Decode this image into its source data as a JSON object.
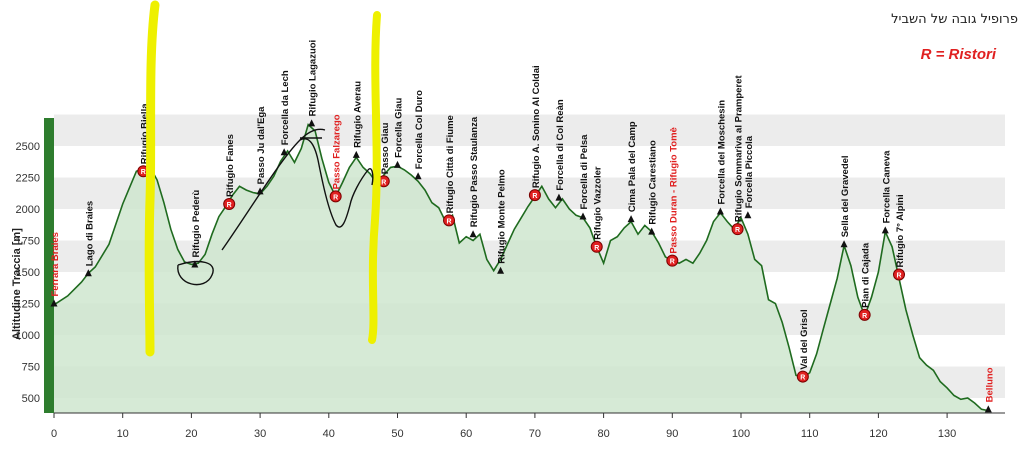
{
  "header": {
    "title": "פרופיל גובה של השביל",
    "legend": "R = Ristori"
  },
  "colors": {
    "line": "#1f6b1f",
    "fill": "#cfe6cf",
    "band": "#ececec",
    "ristoro": "#e02020",
    "highlighter": "#f2f200",
    "leftbar": "#2e7d2e",
    "red_label": "#e02020"
  },
  "chart_data": {
    "type": "area",
    "ylabel": "Altitudine Traccia [m]",
    "xlim": [
      0,
      138
    ],
    "ylim": [
      380,
      2740
    ],
    "x_ticks": [
      0,
      10,
      20,
      30,
      40,
      50,
      60,
      70,
      80,
      90,
      100,
      110,
      120,
      130
    ],
    "y_ticks": [
      500,
      750,
      1000,
      1250,
      1500,
      1750,
      2000,
      2250,
      2500
    ],
    "grid": "horizontal bands",
    "profile": [
      [
        0,
        1240
      ],
      [
        2,
        1310
      ],
      [
        4,
        1420
      ],
      [
        5,
        1490
      ],
      [
        6,
        1540
      ],
      [
        8,
        1720
      ],
      [
        10,
        2040
      ],
      [
        12,
        2300
      ],
      [
        13,
        2320
      ],
      [
        14,
        2330
      ],
      [
        15,
        2230
      ],
      [
        16,
        2050
      ],
      [
        17,
        1840
      ],
      [
        18,
        1680
      ],
      [
        19,
        1580
      ],
      [
        20,
        1560
      ],
      [
        21,
        1570
      ],
      [
        22,
        1640
      ],
      [
        23,
        1800
      ],
      [
        24,
        1940
      ],
      [
        25,
        2020
      ],
      [
        26,
        2110
      ],
      [
        27,
        2180
      ],
      [
        28,
        2150
      ],
      [
        29,
        2130
      ],
      [
        30,
        2120
      ],
      [
        31,
        2180
      ],
      [
        32,
        2260
      ],
      [
        33,
        2380
      ],
      [
        34,
        2460
      ],
      [
        35,
        2370
      ],
      [
        36,
        2480
      ],
      [
        37,
        2670
      ],
      [
        38,
        2620
      ],
      [
        39,
        2400
      ],
      [
        40,
        2210
      ],
      [
        41,
        2100
      ],
      [
        42,
        2210
      ],
      [
        43,
        2330
      ],
      [
        44,
        2410
      ],
      [
        45,
        2330
      ],
      [
        46,
        2280
      ],
      [
        47,
        2200
      ],
      [
        48,
        2270
      ],
      [
        49,
        2330
      ],
      [
        50,
        2340
      ],
      [
        51,
        2310
      ],
      [
        52,
        2270
      ],
      [
        53,
        2220
      ],
      [
        54,
        2150
      ],
      [
        55,
        2050
      ],
      [
        56,
        2010
      ],
      [
        57,
        1900
      ],
      [
        58,
        1950
      ],
      [
        59,
        1730
      ],
      [
        60,
        1780
      ],
      [
        61,
        1750
      ],
      [
        62,
        1800
      ],
      [
        63,
        1600
      ],
      [
        64,
        1510
      ],
      [
        65,
        1600
      ],
      [
        66,
        1720
      ],
      [
        67,
        1840
      ],
      [
        68,
        1930
      ],
      [
        69,
        2020
      ],
      [
        70,
        2100
      ],
      [
        71,
        2180
      ],
      [
        72,
        2080
      ],
      [
        73,
        2010
      ],
      [
        74,
        2080
      ],
      [
        75,
        2000
      ],
      [
        76,
        1950
      ],
      [
        77,
        1930
      ],
      [
        78,
        1850
      ],
      [
        79,
        1700
      ],
      [
        80,
        1570
      ],
      [
        81,
        1750
      ],
      [
        82,
        1780
      ],
      [
        83,
        1850
      ],
      [
        84,
        1900
      ],
      [
        85,
        1800
      ],
      [
        86,
        1870
      ],
      [
        87,
        1820
      ],
      [
        88,
        1730
      ],
      [
        89,
        1620
      ],
      [
        90,
        1590
      ],
      [
        91,
        1570
      ],
      [
        92,
        1600
      ],
      [
        93,
        1570
      ],
      [
        94,
        1650
      ],
      [
        95,
        1750
      ],
      [
        96,
        1900
      ],
      [
        97,
        1970
      ],
      [
        98,
        1900
      ],
      [
        99,
        1840
      ],
      [
        100,
        1930
      ],
      [
        101,
        1800
      ],
      [
        102,
        1600
      ],
      [
        103,
        1550
      ],
      [
        104,
        1280
      ],
      [
        105,
        1250
      ],
      [
        106,
        1100
      ],
      [
        107,
        900
      ],
      [
        108,
        680
      ],
      [
        109,
        660
      ],
      [
        110,
        700
      ],
      [
        111,
        850
      ],
      [
        112,
        1050
      ],
      [
        113,
        1250
      ],
      [
        114,
        1450
      ],
      [
        115,
        1710
      ],
      [
        116,
        1550
      ],
      [
        117,
        1300
      ],
      [
        118,
        1150
      ],
      [
        119,
        1300
      ],
      [
        120,
        1500
      ],
      [
        121,
        1820
      ],
      [
        122,
        1700
      ],
      [
        123,
        1450
      ],
      [
        124,
        1200
      ],
      [
        125,
        1000
      ],
      [
        126,
        820
      ],
      [
        127,
        760
      ],
      [
        128,
        720
      ],
      [
        129,
        630
      ],
      [
        130,
        580
      ],
      [
        131,
        520
      ],
      [
        132,
        490
      ],
      [
        133,
        500
      ],
      [
        134,
        460
      ],
      [
        135,
        410
      ],
      [
        136,
        400
      ]
    ],
    "waypoints": [
      {
        "x": 0,
        "y": 1250,
        "label": "Ferrara Braies",
        "color": "red",
        "marker": "tri"
      },
      {
        "x": 5,
        "y": 1490,
        "label": "Lago di Braies",
        "color": "black",
        "marker": "tri"
      },
      {
        "x": 13,
        "y": 2300,
        "label": "Rifugio Biella",
        "color": "black",
        "marker": "r"
      },
      {
        "x": 20.5,
        "y": 1560,
        "label": "Rifugio Pederù",
        "color": "black",
        "marker": "tri"
      },
      {
        "x": 25.5,
        "y": 2040,
        "label": "Rifugio Fanes",
        "color": "black",
        "marker": "r"
      },
      {
        "x": 30,
        "y": 2140,
        "label": "Passo Ju dal'Ega",
        "color": "black",
        "marker": "tri"
      },
      {
        "x": 33.5,
        "y": 2450,
        "label": "Forcella da Lech",
        "color": "black",
        "marker": "tri"
      },
      {
        "x": 37.5,
        "y": 2680,
        "label": "Rifugio Lagazuoi",
        "color": "black",
        "marker": "tri"
      },
      {
        "x": 41,
        "y": 2100,
        "label": "Passo Falzarego",
        "color": "red",
        "marker": "r"
      },
      {
        "x": 44,
        "y": 2430,
        "label": "Rifugio Averau",
        "color": "black",
        "marker": "tri"
      },
      {
        "x": 48,
        "y": 2220,
        "label": "Passo Giau",
        "color": "black",
        "marker": "r"
      },
      {
        "x": 50,
        "y": 2350,
        "label": "Forcella Giau",
        "color": "black",
        "marker": "tri"
      },
      {
        "x": 53,
        "y": 2260,
        "label": "Forcella Col Duro",
        "color": "black",
        "marker": "tri"
      },
      {
        "x": 57.5,
        "y": 1910,
        "label": "Rifugio Città di Fiume",
        "color": "black",
        "marker": "r"
      },
      {
        "x": 61,
        "y": 1800,
        "label": "Rifugio Passo Staulanza",
        "color": "black",
        "marker": "tri"
      },
      {
        "x": 65,
        "y": 1510,
        "label": "Rifugio Monte Pelmo",
        "color": "black",
        "marker": "tri"
      },
      {
        "x": 70,
        "y": 2110,
        "label": "Rifugio A. Sonino Al Coldai",
        "color": "black",
        "marker": "r"
      },
      {
        "x": 73.5,
        "y": 2090,
        "label": "Forcella di Col Reàn",
        "color": "black",
        "marker": "tri"
      },
      {
        "x": 77,
        "y": 1940,
        "label": "Forcella di Pelsa",
        "color": "black",
        "marker": "tri"
      },
      {
        "x": 79,
        "y": 1700,
        "label": "Rifugio Vazzoler",
        "color": "black",
        "marker": "r"
      },
      {
        "x": 84,
        "y": 1920,
        "label": "Cima Pala del Camp",
        "color": "black",
        "marker": "tri"
      },
      {
        "x": 87,
        "y": 1820,
        "label": "Rifugio Carestiano",
        "color": "black",
        "marker": "tri"
      },
      {
        "x": 90,
        "y": 1590,
        "label": "Passo Duran - Rifugio Tomè",
        "color": "red",
        "marker": "r"
      },
      {
        "x": 97,
        "y": 1980,
        "label": "Forcella del Moschesin",
        "color": "black",
        "marker": "tri"
      },
      {
        "x": 99.5,
        "y": 1840,
        "label": "Rifugio Sommariva al Pramperet",
        "color": "black",
        "marker": "r"
      },
      {
        "x": 101,
        "y": 1950,
        "label": "Forcella Piccola",
        "color": "black",
        "marker": "tri"
      },
      {
        "x": 109,
        "y": 670,
        "label": "Val del Grisol",
        "color": "black",
        "marker": "r"
      },
      {
        "x": 115,
        "y": 1720,
        "label": "Sella del Gravedel",
        "color": "black",
        "marker": "tri"
      },
      {
        "x": 118,
        "y": 1160,
        "label": "Pian di Cajada",
        "color": "black",
        "marker": "r"
      },
      {
        "x": 121,
        "y": 1830,
        "label": "Forcella Caneva",
        "color": "black",
        "marker": "tri"
      },
      {
        "x": 123,
        "y": 1480,
        "label": "Rifugio 7° Alpini",
        "color": "black",
        "marker": "r"
      },
      {
        "x": 136,
        "y": 410,
        "label": "Belluno",
        "color": "red",
        "marker": "tri"
      }
    ]
  }
}
